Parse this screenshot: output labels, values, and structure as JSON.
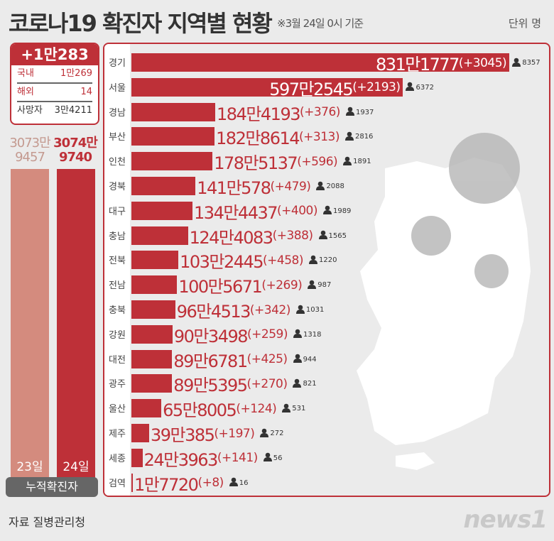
{
  "header": {
    "title": "코로나19 확진자 지역별 현황",
    "subtitle": "※3월 24일 0시 기준",
    "unit": "단위 명"
  },
  "new_cases": {
    "total": "+1만283",
    "rows": [
      {
        "label": "국내",
        "value": "1만269"
      },
      {
        "label": "해외",
        "value": "14"
      }
    ],
    "deaths_label": "사망자",
    "deaths": "3만4211"
  },
  "cumulative": {
    "label": "누적확진자",
    "days": [
      {
        "day": "23일",
        "value": 30739457,
        "text_top": "3073만",
        "text_bottom": "9457",
        "color": "#d48b7e"
      },
      {
        "day": "24일",
        "value": 30749740,
        "text_top": "3074만",
        "text_bottom": "9740",
        "color": "#be3038"
      }
    ]
  },
  "chart_data": {
    "type": "bar",
    "orientation": "horizontal",
    "unit": "명",
    "categories": [
      "경기",
      "서울",
      "경남",
      "부산",
      "인천",
      "경북",
      "대구",
      "충남",
      "전북",
      "전남",
      "충북",
      "강원",
      "대전",
      "광주",
      "울산",
      "제주",
      "세종",
      "검역"
    ],
    "values": [
      8311777,
      5972545,
      1844193,
      1828614,
      1785137,
      1410578,
      1344437,
      1244083,
      1032445,
      1005671,
      964513,
      903498,
      896781,
      895395,
      658005,
      390385,
      243963,
      17720
    ],
    "value_labels": [
      "831만1777",
      "597만2545",
      "184만4193",
      "182만8614",
      "178만5137",
      "141만578",
      "134만4437",
      "124만4083",
      "103만2445",
      "100만5671",
      "96만4513",
      "90만3498",
      "89만6781",
      "89만5395",
      "65만8005",
      "39만385",
      "24만3963",
      "1만7720"
    ],
    "increase_labels": [
      "(+3045)",
      "(+2193)",
      "(+376)",
      "(+313)",
      "(+596)",
      "(+479)",
      "(+400)",
      "(+388)",
      "(+458)",
      "(+269)",
      "(+342)",
      "(+259)",
      "(+425)",
      "(+270)",
      "(+124)",
      "(+197)",
      "(+141)",
      "(+8)"
    ],
    "deaths": [
      "8357",
      "6372",
      "1937",
      "2816",
      "1891",
      "2088",
      "1989",
      "1565",
      "1220",
      "987",
      "1031",
      "1318",
      "944",
      "821",
      "531",
      "272",
      "56",
      "16"
    ],
    "bar_color": "#be3038"
  },
  "footer": {
    "source": "자료 질병관리청",
    "logo": "news1"
  }
}
